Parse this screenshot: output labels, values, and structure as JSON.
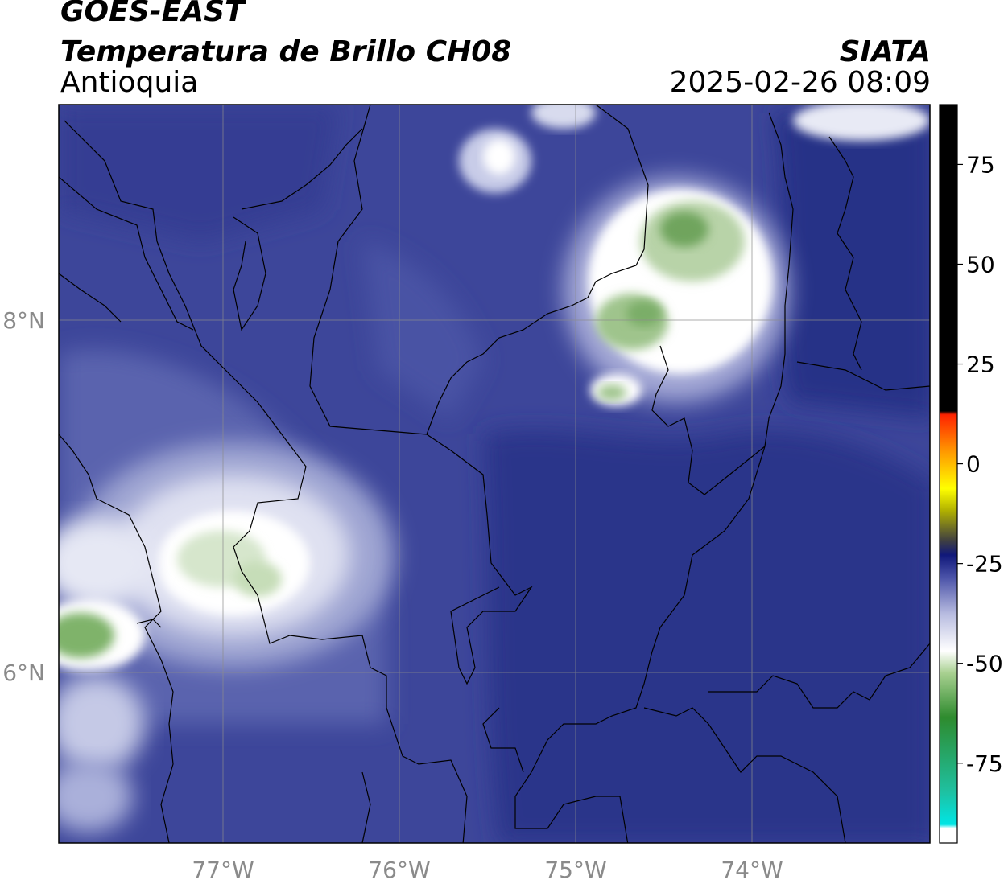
{
  "header": {
    "satellite": "GOES-EAST",
    "product": "Temperatura de Brillo CH08",
    "region": "Antioquia",
    "agency": "SIATA",
    "timestamp": "2025-02-26 08:09"
  },
  "map": {
    "longitude_labels": [
      "77°W",
      "76°W",
      "75°W",
      "74°W"
    ],
    "latitude_labels": [
      "8°N",
      "6°N"
    ],
    "background_color": "#3a4397",
    "cold_cloud_color": "#ffffff",
    "coldest_color": "#3f8a3a"
  },
  "colorbar": {
    "tick_labels": [
      "75",
      "50",
      "25",
      "0",
      "-25",
      "-50",
      "-75"
    ],
    "tick_values": [
      75,
      50,
      25,
      0,
      -25,
      -50,
      -75
    ],
    "range": [
      -95,
      90
    ]
  }
}
